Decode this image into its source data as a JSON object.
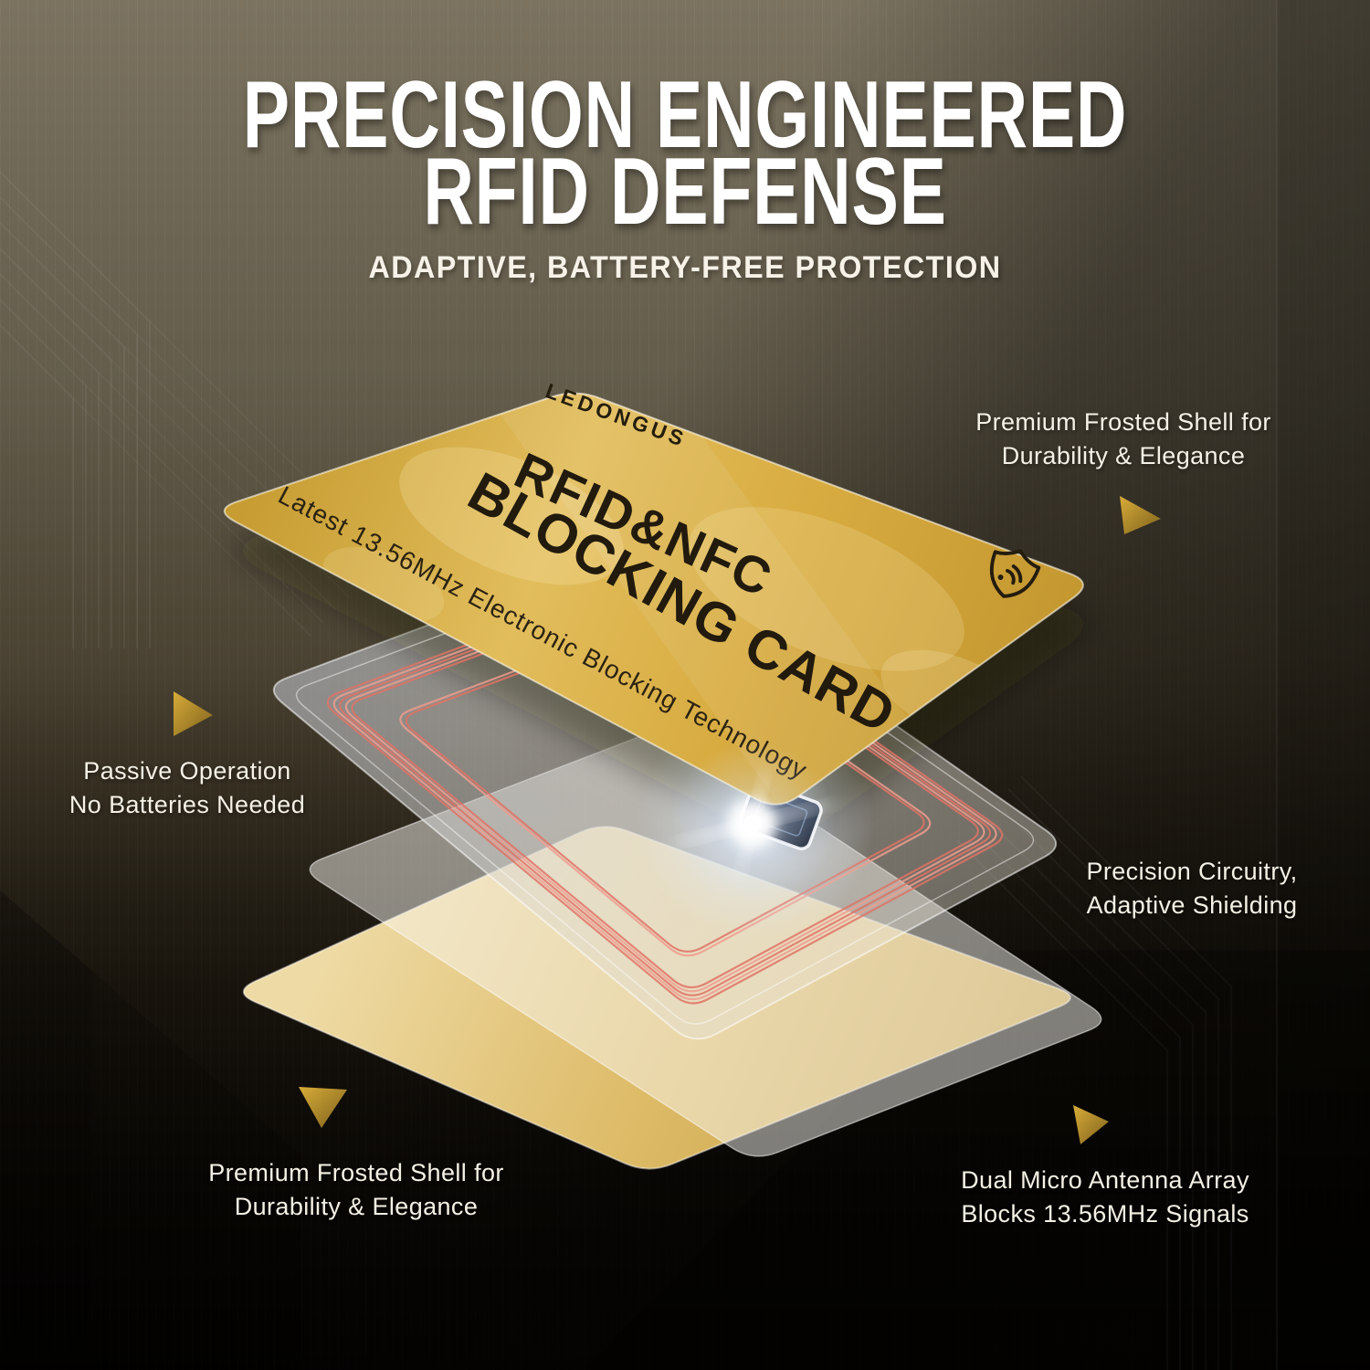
{
  "header": {
    "title_line1": "PRECISION ENGINEERED",
    "title_line2": "RFID DEFENSE",
    "subtitle": "ADAPTIVE, BATTERY-FREE PROTECTION"
  },
  "card": {
    "brand": "LEDONGUS",
    "product_line1": "RFID&NFC",
    "product_line2": "BLOCKING CARD",
    "tagline": "Latest 13.56MHz Electronic Blocking Technology",
    "shield_icon": "shield-wifi-icon"
  },
  "callouts": {
    "top_right": {
      "line1": "Premium Frosted Shell for",
      "line2": "Durability & Elegance"
    },
    "middle_left": {
      "line1": "Passive Operation",
      "line2": "No Batteries Needed"
    },
    "middle_right": {
      "line1": "Precision Circuitry,",
      "line2": "Adaptive Shielding"
    },
    "bottom_left": {
      "line1": "Premium Frosted Shell for",
      "line2": "Durability & Elegance"
    },
    "bottom_right": {
      "line1": "Dual Micro Antenna Array",
      "line2": "Blocks 13.56MHz Signals"
    }
  },
  "colors": {
    "background_top": "#78705d",
    "background_bottom": "#0c0905",
    "gold_card": "#d9ab41",
    "gold_accent": "#c0952e",
    "pale_gold": "#dcba66",
    "coil_red": "#df7366",
    "glow_white": "#ffffff",
    "text_light": "#f5f1e6",
    "text_dark": "#211a0d"
  }
}
